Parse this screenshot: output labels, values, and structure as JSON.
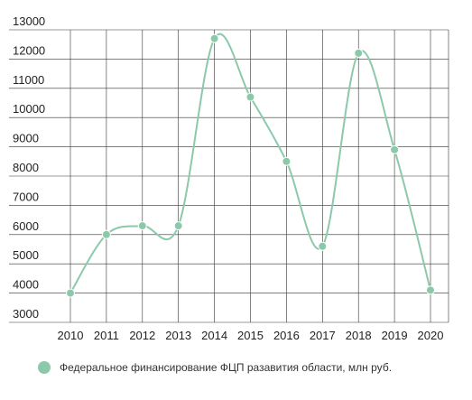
{
  "chart_data": {
    "type": "line",
    "x": [
      "2010",
      "2011",
      "2012",
      "2013",
      "2014",
      "2015",
      "2016",
      "2017",
      "2018",
      "2019",
      "2020"
    ],
    "series": [
      {
        "name": "Федеральное финансирование ФЦП разавития области, млн руб.",
        "values": [
          4000,
          6000,
          6300,
          6300,
          12700,
          10700,
          8500,
          5600,
          12200,
          8900,
          4100
        ],
        "color": "#8cc9aa"
      }
    ],
    "yticks": [
      "3000",
      "4000",
      "5000",
      "6000",
      "7000",
      "8000",
      "9000",
      "10000",
      "11000",
      "12000",
      "13000"
    ],
    "ylim": [
      3000,
      13000
    ],
    "grid": true,
    "smooth": true,
    "legend": "bottom-left",
    "colors": {
      "line": "#8cc9aa",
      "grid": "#333333"
    }
  }
}
